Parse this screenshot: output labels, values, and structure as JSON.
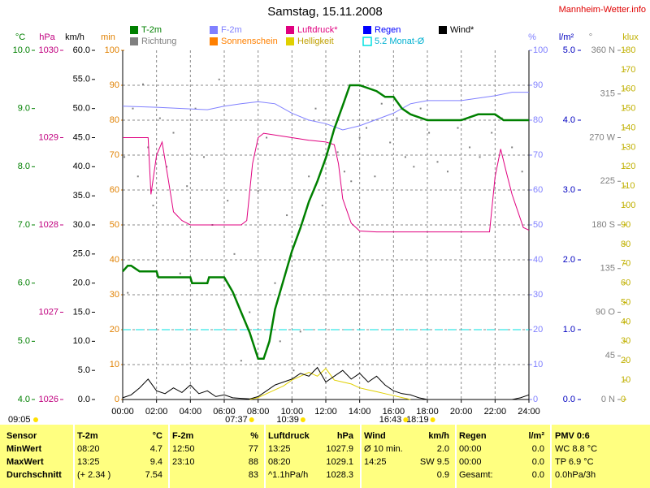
{
  "header": {
    "title": "Samstag, 15.11.2008",
    "site": "Mannheim-Wetter.info",
    "info_time": "09:05"
  },
  "chart_data": {
    "type": "line",
    "xlim": [
      0,
      24
    ],
    "xticks": [
      {
        "value": 0,
        "label": "00:00"
      },
      {
        "value": 2,
        "label": "02:00"
      },
      {
        "value": 4,
        "label": "04:00"
      },
      {
        "value": 6,
        "label": "06:00"
      },
      {
        "value": 8,
        "label": "08:00"
      },
      {
        "value": 10,
        "label": "10:00"
      },
      {
        "value": 12,
        "label": "12:00"
      },
      {
        "value": 14,
        "label": "14:00"
      },
      {
        "value": 16,
        "label": "16:00"
      },
      {
        "value": 18,
        "label": "18:00"
      },
      {
        "value": 20,
        "label": "20:00"
      },
      {
        "value": 22,
        "label": "22:00"
      },
      {
        "value": 24,
        "label": "24:00"
      }
    ],
    "grid": true,
    "axes": [
      {
        "unit": "°C",
        "color": "#008000",
        "lim": [
          4,
          10
        ],
        "ticks": [
          {
            "value": 4,
            "label": "4.0"
          },
          {
            "value": 5,
            "label": "5.0"
          },
          {
            "value": 6,
            "label": "6.0"
          },
          {
            "value": 7,
            "label": "7.0"
          },
          {
            "value": 8,
            "label": "8.0"
          },
          {
            "value": 9,
            "label": "9.0"
          },
          {
            "value": 10,
            "label": "10.0"
          }
        ]
      },
      {
        "unit": "hPa",
        "color": "#c0007f",
        "lim": [
          1026,
          1030
        ],
        "ticks": [
          1026,
          1027,
          1028,
          1029,
          1030
        ]
      },
      {
        "unit": "km/h",
        "color": "#000000",
        "lim": [
          0,
          60
        ],
        "ticks": [
          {
            "value": 0,
            "label": "0.0"
          },
          {
            "value": 5,
            "label": "5.0"
          },
          {
            "value": 10,
            "label": "10.0"
          },
          {
            "value": 15,
            "label": "15.0"
          },
          {
            "value": 20,
            "label": "20.0"
          },
          {
            "value": 25,
            "label": "25.0"
          },
          {
            "value": 30,
            "label": "30.0"
          },
          {
            "value": 35,
            "label": "35.0"
          },
          {
            "value": 40,
            "label": "40.0"
          },
          {
            "value": 45,
            "label": "45.0"
          },
          {
            "value": 50,
            "label": "50.0"
          },
          {
            "value": 55,
            "label": "55.0"
          },
          {
            "value": 60,
            "label": "60.0"
          }
        ]
      },
      {
        "unit": "min",
        "color": "#e08000",
        "lim": [
          0,
          100
        ],
        "ticks": [
          0,
          10,
          20,
          30,
          40,
          50,
          60,
          70,
          80,
          90,
          100
        ]
      },
      {
        "unit": "%",
        "color": "#8080ff",
        "lim": [
          0,
          100
        ],
        "ticks": [
          0,
          10,
          20,
          30,
          40,
          50,
          60,
          70,
          80,
          90,
          100
        ]
      },
      {
        "unit": "l/m²",
        "color": "#0000c0",
        "lim": [
          0,
          5
        ],
        "ticks": [
          {
            "value": 0,
            "label": "0.0"
          },
          {
            "value": 1,
            "label": "1.0"
          },
          {
            "value": 2,
            "label": "2.0"
          },
          {
            "value": 3,
            "label": "3.0"
          },
          {
            "value": 4,
            "label": "4.0"
          },
          {
            "value": 5,
            "label": "5.0"
          }
        ]
      },
      {
        "unit": "°",
        "color": "#808080",
        "lim": [
          0,
          360
        ],
        "ticks": [
          {
            "value": 0,
            "label": "0 N"
          },
          45,
          {
            "value": 90,
            "label": "90 O"
          },
          135,
          {
            "value": 180,
            "label": "180 S"
          },
          225,
          {
            "value": 270,
            "label": "270 W"
          },
          315,
          {
            "value": 360,
            "label": "360 N"
          }
        ]
      },
      {
        "unit": "klux",
        "color": "#c0b000",
        "lim": [
          0,
          180
        ],
        "ticks": [
          0,
          10,
          20,
          30,
          40,
          50,
          60,
          70,
          80,
          90,
          100,
          110,
          120,
          130,
          140,
          150,
          160,
          170,
          180
        ]
      }
    ],
    "series": [
      {
        "name": "T-2m",
        "color": "#008000",
        "axis": 0,
        "x": [
          0,
          0.3,
          0.5,
          1,
          2,
          2.1,
          4,
          4.1,
          5,
          5.1,
          6,
          6.5,
          7,
          7.5,
          8,
          8.33,
          8.67,
          9,
          9.5,
          10,
          10.5,
          11,
          11.5,
          12,
          12.5,
          13,
          13.42,
          14,
          15,
          15.5,
          16,
          16.5,
          17,
          18,
          20,
          21,
          22,
          22.5,
          24
        ],
        "values": [
          6.2,
          6.3,
          6.3,
          6.2,
          6.2,
          6.1,
          6.1,
          6.0,
          6.0,
          6.1,
          6.1,
          5.85,
          5.5,
          5.15,
          4.7,
          4.7,
          5.0,
          5.55,
          6.05,
          6.55,
          6.95,
          7.4,
          7.75,
          8.15,
          8.65,
          9.05,
          9.4,
          9.4,
          9.3,
          9.2,
          9.2,
          9.0,
          8.9,
          8.8,
          8.8,
          8.9,
          8.9,
          8.8,
          8.8
        ]
      },
      {
        "name": "Richtung",
        "color": "#808080",
        "axis": 6,
        "type": "scatter",
        "x": [
          0.1,
          0.3,
          0.6,
          0.9,
          1.2,
          1.5,
          1.8,
          2.2,
          2.6,
          3.0,
          3.4,
          3.8,
          4.3,
          4.8,
          5.3,
          5.7,
          6.2,
          6.6,
          7.0,
          7.5,
          8.0,
          8.5,
          9.0,
          9.3,
          9.7,
          10.1,
          10.5,
          11.0,
          11.4,
          11.8,
          12.2,
          12.7,
          13.1,
          13.5,
          14.0,
          14.4,
          14.9,
          15.3,
          15.8,
          16.2,
          16.7,
          17.2,
          17.6,
          18.1,
          18.6,
          19.2,
          19.8,
          20.5,
          21.1,
          21.8,
          22.4,
          23.0,
          23.6
        ],
        "values": [
          250,
          110,
          300,
          230,
          325,
          260,
          200,
          290,
          240,
          275,
          130,
          220,
          300,
          250,
          180,
          330,
          205,
          150,
          40,
          90,
          215,
          270,
          120,
          60,
          190,
          30,
          70,
          230,
          300,
          200,
          260,
          255,
          235,
          225,
          270,
          280,
          230,
          305,
          265,
          290,
          250,
          240,
          300,
          275,
          245,
          235,
          280,
          260,
          250,
          275,
          290,
          260,
          235
        ]
      },
      {
        "name": "F-2m",
        "color": "#8080ff",
        "axis": 4,
        "x": [
          0,
          2,
          5,
          6,
          7,
          8,
          9,
          10,
          11,
          12,
          13,
          14,
          15,
          16,
          17,
          18,
          20,
          22,
          23,
          24
        ],
        "values": [
          84,
          83.7,
          83,
          84,
          84.7,
          85.3,
          84.7,
          82,
          80,
          79,
          77.2,
          78.4,
          80.2,
          82,
          84.7,
          85.6,
          85.6,
          87,
          88,
          88
        ]
      },
      {
        "name": "Sonnenschein",
        "color": "#ff8000",
        "axis": 3,
        "x": [],
        "values": []
      },
      {
        "name": "Luftdruck*",
        "color": "#e0007f",
        "axis": 1,
        "x": [
          0,
          1.5,
          1.67,
          2,
          2.33,
          2.67,
          3,
          3.5,
          4,
          7,
          7.33,
          7.67,
          8,
          8.33,
          10,
          11,
          12,
          12.5,
          12.75,
          13,
          13.5,
          14,
          15,
          21.67,
          22,
          22.33,
          22.67,
          23,
          23.67,
          24
        ],
        "values": [
          1029.0,
          1029.0,
          1028.35,
          1028.8,
          1028.95,
          1028.55,
          1028.15,
          1028.05,
          1028.0,
          1028.0,
          1028.05,
          1028.7,
          1029.0,
          1029.05,
          1029.0,
          1028.97,
          1028.95,
          1028.92,
          1028.7,
          1028.3,
          1028.02,
          1027.93,
          1027.92,
          1027.92,
          1028.55,
          1028.87,
          1028.6,
          1028.35,
          1027.97,
          1027.94
        ]
      },
      {
        "name": "Helligkeit",
        "color": "#e0d000",
        "axis": 7,
        "x": [
          7.5,
          8,
          8.5,
          9,
          9.5,
          10,
          10.5,
          11,
          11.5,
          12,
          12.5,
          13,
          13.5,
          14,
          14.5,
          15,
          15.5,
          16,
          16.5,
          17
        ],
        "values": [
          0,
          1,
          3,
          5,
          7,
          10,
          12,
          14,
          12,
          16,
          10,
          9,
          8,
          6,
          5,
          4,
          3,
          2,
          1,
          0
        ]
      },
      {
        "name": "Regen",
        "color": "#0000ff",
        "axis": 5,
        "x": [],
        "values": []
      },
      {
        "name": "5.2 Monat-Ø",
        "color": "#00e0e0",
        "axis": 0,
        "style": "dashed",
        "x": [
          0,
          24
        ],
        "values": [
          5.2,
          5.2
        ]
      },
      {
        "name": "Wind*",
        "color": "#000000",
        "axis": 2,
        "x": [
          0,
          0.5,
          1,
          1.5,
          2,
          2.5,
          3,
          3.5,
          4,
          4.5,
          5,
          5.5,
          6,
          6.5,
          7,
          7.5,
          8,
          8.5,
          9,
          9.5,
          10,
          10.5,
          11,
          11.5,
          12,
          12.5,
          13,
          13.5,
          14,
          14.5,
          15,
          15.5,
          16,
          16.5,
          17,
          17.5,
          18,
          19,
          20,
          21,
          22,
          23,
          23.5,
          24
        ],
        "values": [
          0.3,
          0.8,
          2,
          3.5,
          1.5,
          1,
          2,
          1.2,
          2.5,
          1,
          1.5,
          0.5,
          0.8,
          0.3,
          0.2,
          0.1,
          0.5,
          1.5,
          2.5,
          3,
          3.5,
          4.5,
          4,
          5.5,
          3,
          4,
          5,
          3.5,
          4.5,
          3,
          4,
          2.5,
          1.5,
          1,
          0.8,
          0.3,
          0,
          0,
          0,
          0,
          0,
          0,
          0.3,
          0.8
        ]
      }
    ],
    "sun_events": [
      {
        "label": "07:37",
        "x": 7.617
      },
      {
        "label": "10:39",
        "x": 10.65
      },
      {
        "label": "16:43",
        "x": 16.717
      },
      {
        "label": "18:19",
        "x": 18.317
      }
    ]
  },
  "table": {
    "header": [
      "Sensor",
      "T-2m",
      "°C",
      "F-2m",
      "%",
      "Luftdruck",
      "hPa",
      "Wind",
      "km/h",
      "Regen",
      "l/m²",
      "PMV 0:6"
    ],
    "rows": [
      [
        "MinWert",
        "08:20",
        "4.7",
        "12:50",
        "77",
        "13:25",
        "1027.9",
        "Ø 10 min.",
        "2.0",
        "00:00",
        "0.0",
        "WC 8.8 °C"
      ],
      [
        "MaxWert",
        "13:25",
        "9.4",
        "23:10",
        "88",
        "08:20",
        "1029.1",
        "14:25",
        "SW 9.5",
        "00:00",
        "0.0",
        "TP 6.9 °C"
      ],
      [
        "Durchschnitt",
        "(+ 2.34 )",
        "7.54",
        null,
        "83",
        "^1.1hPa/h",
        "1028.3",
        null,
        "0.9",
        "Gesamt:",
        "0.0",
        "0.0hPa/3h"
      ]
    ]
  }
}
